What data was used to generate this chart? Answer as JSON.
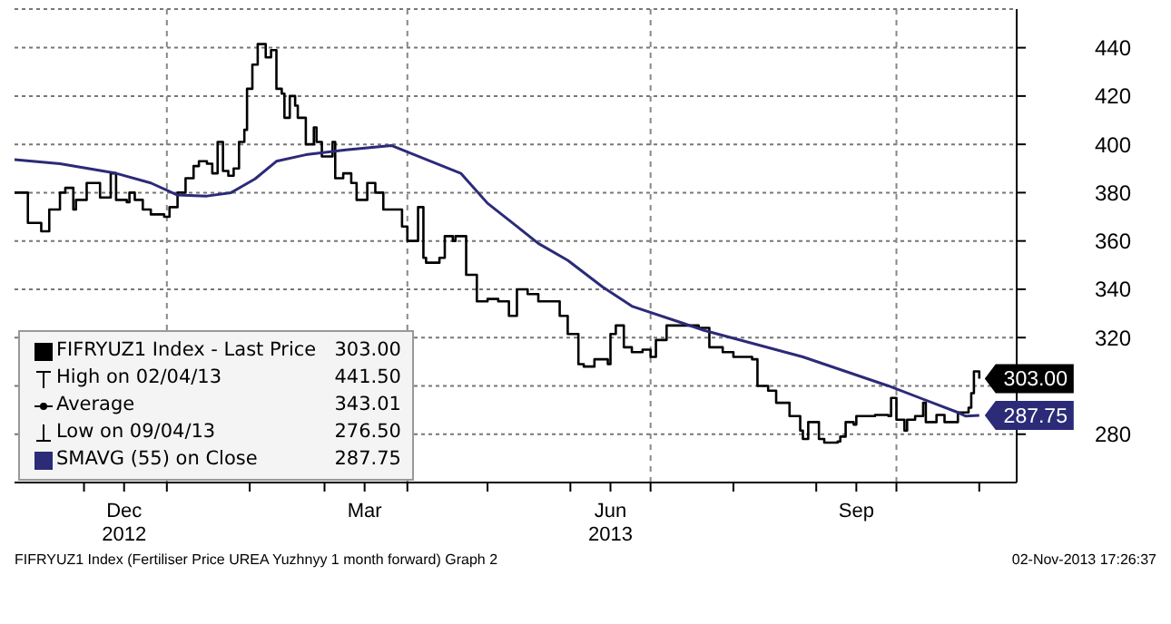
{
  "chart_data": {
    "type": "line",
    "xlim": [
      "2012-11-05",
      "2013-11-15"
    ],
    "xticks": [
      {
        "value": "2012-12-01",
        "label": null
      },
      {
        "value": "2012-12-16",
        "label": "Dec\n2012"
      },
      {
        "value": "2013-01-01",
        "label": null
      },
      {
        "value": "2013-02-01",
        "label": null
      },
      {
        "value": "2013-03-01",
        "label": null
      },
      {
        "value": "2013-03-16",
        "label": "Mar"
      },
      {
        "value": "2013-04-01",
        "label": null
      },
      {
        "value": "2013-05-01",
        "label": null
      },
      {
        "value": "2013-06-01",
        "label": null
      },
      {
        "value": "2013-06-16",
        "label": "Jun\n2013"
      },
      {
        "value": "2013-07-01",
        "label": null
      },
      {
        "value": "2013-08-01",
        "label": null
      },
      {
        "value": "2013-09-01",
        "label": null
      },
      {
        "value": "2013-09-16",
        "label": "Sep"
      },
      {
        "value": "2013-10-01",
        "label": null
      },
      {
        "value": "2013-11-01",
        "label": null
      }
    ],
    "ylim": [
      260,
      456
    ],
    "yticks": [
      280,
      {
        "value": 300,
        "label": null
      },
      320,
      340,
      360,
      380,
      400,
      420,
      440
    ],
    "grid": "y",
    "ref_lines": [
      {
        "axis": "x",
        "value": "2013-01-01",
        "color": "#888888",
        "line_style": "dashed"
      },
      {
        "axis": "x",
        "value": "2013-04-01",
        "color": "#888888",
        "line_style": "dashed"
      },
      {
        "axis": "x",
        "value": "2013-07-01",
        "color": "#888888",
        "line_style": "dashed"
      },
      {
        "axis": "x",
        "value": "2013-10-01",
        "color": "#888888",
        "line_style": "dashed"
      }
    ],
    "legend": "bottom left",
    "annotations": [
      "High on 02/04/13 441.50",
      "Average 343.01",
      "Low on 09/04/13 276.50",
      "FIFRYUZ1 Index (Fertiliser Price UREA Yuzhnyy 1 month forward) Graph 2",
      "02-Nov-2013 17:26:37"
    ],
    "series": [
      {
        "name": "FIFRYUZ1 Index - Last Price",
        "type": "step",
        "color": "#000000",
        "x": [
          "2012-11-05",
          "2012-11-10",
          "2012-11-15",
          "2012-11-18",
          "2012-11-22",
          "2012-11-24",
          "2012-11-27",
          "2012-11-28",
          "2012-12-02",
          "2012-12-07",
          "2012-12-11",
          "2012-12-13",
          "2012-12-17",
          "2012-12-18",
          "2012-12-20",
          "2012-12-23",
          "2012-12-26",
          "2012-12-31",
          "2013-01-02",
          "2013-01-05",
          "2013-01-08",
          "2013-01-11",
          "2013-01-13",
          "2013-01-16",
          "2013-01-18",
          "2013-01-20",
          "2013-01-22",
          "2013-01-24",
          "2013-01-26",
          "2013-01-28",
          "2013-01-30",
          "2013-01-31",
          "2013-02-02",
          "2013-02-04",
          "2013-02-07",
          "2013-02-09",
          "2013-02-11",
          "2013-02-13",
          "2013-02-14",
          "2013-02-16",
          "2013-02-18",
          "2013-02-19",
          "2013-02-22",
          "2013-02-25",
          "2013-02-26",
          "2013-02-28",
          "2013-03-04",
          "2013-03-05",
          "2013-03-08",
          "2013-03-11",
          "2013-03-13",
          "2013-03-17",
          "2013-03-20",
          "2013-03-23",
          "2013-03-30",
          "2013-04-01",
          "2013-04-05",
          "2013-04-07",
          "2013-04-08",
          "2013-04-13",
          "2013-04-15",
          "2013-04-18",
          "2013-04-19",
          "2013-04-23",
          "2013-04-27",
          "2013-05-01",
          "2013-05-05",
          "2013-05-09",
          "2013-05-12",
          "2013-05-16",
          "2013-05-20",
          "2013-05-28",
          "2013-05-31",
          "2013-06-04",
          "2013-06-06",
          "2013-06-10",
          "2013-06-15",
          "2013-06-16",
          "2013-06-18",
          "2013-06-21",
          "2013-06-24",
          "2013-06-28",
          "2013-07-01",
          "2013-07-03",
          "2013-07-07",
          "2013-07-19",
          "2013-07-23",
          "2013-07-26",
          "2013-07-28",
          "2013-08-01",
          "2013-08-08",
          "2013-08-10",
          "2013-08-14",
          "2013-08-17",
          "2013-08-22",
          "2013-08-26",
          "2013-08-27",
          "2013-08-29",
          "2013-09-02",
          "2013-09-04",
          "2013-09-09",
          "2013-09-10",
          "2013-09-12",
          "2013-09-15",
          "2013-09-16",
          "2013-09-23",
          "2013-09-28",
          "2013-09-29",
          "2013-10-01",
          "2013-10-04",
          "2013-10-05",
          "2013-10-08",
          "2013-10-11",
          "2013-10-12",
          "2013-10-16",
          "2013-10-19",
          "2013-10-24",
          "2013-10-28",
          "2013-10-29",
          "2013-10-30",
          "2013-11-01"
        ],
        "values": [
          380,
          367.5,
          364,
          373,
          380,
          382,
          373,
          377,
          384,
          378,
          388,
          377,
          376,
          380,
          377,
          373,
          371,
          370,
          374,
          380,
          386,
          391,
          393,
          392,
          388,
          401,
          389,
          387,
          390,
          401,
          406,
          423,
          433,
          441.5,
          436,
          439,
          423,
          421,
          411,
          420,
          416,
          411,
          400,
          407,
          401,
          395,
          401,
          386,
          388,
          384,
          377,
          384,
          380,
          373,
          366,
          360,
          374,
          353,
          351,
          353,
          362,
          360,
          362,
          346,
          335,
          336,
          335,
          329,
          340,
          338,
          335,
          329,
          321.5,
          309,
          308,
          311,
          309,
          321.5,
          325,
          316,
          314,
          315,
          312,
          319,
          325,
          324,
          316,
          316,
          314,
          312,
          311,
          300,
          298,
          293,
          287.5,
          281.5,
          278,
          285,
          278,
          276.5,
          277,
          279,
          285,
          284,
          287.5,
          288,
          287.5,
          295,
          286,
          281.5,
          286,
          287.5,
          293,
          285,
          288,
          285,
          289,
          291,
          297,
          306,
          303
        ],
        "value_labels": [
          null,
          null,
          null,
          null,
          null,
          null,
          null,
          null,
          null,
          null,
          null,
          null,
          null,
          null,
          null,
          null,
          null,
          null,
          null,
          null,
          null,
          null,
          null,
          null,
          null,
          null,
          null,
          null,
          null,
          null,
          null,
          null,
          null,
          null,
          null,
          null,
          null,
          null,
          null,
          null,
          null,
          null,
          null,
          null,
          null,
          null,
          null,
          null,
          null,
          null,
          null,
          null,
          null,
          null,
          null,
          null,
          null,
          null,
          null,
          null,
          null,
          null,
          null,
          null,
          null,
          null,
          null,
          null,
          null,
          null,
          null,
          null,
          null,
          null,
          null,
          null,
          null,
          null,
          null,
          null,
          null,
          null,
          null,
          null,
          null,
          null,
          null,
          null,
          null,
          null,
          null,
          null,
          null,
          null,
          null,
          null,
          null,
          null,
          null,
          null,
          null,
          null,
          null,
          null,
          null,
          null,
          null,
          null,
          null,
          null,
          null,
          null,
          null,
          null,
          null,
          null,
          null,
          null,
          null,
          null,
          "303.00"
        ]
      },
      {
        "name": "SMAVG (55) on Close",
        "type": "line",
        "color": "#2b2b78",
        "x": [
          "2012-11-05",
          "2012-11-22",
          "2012-12-13",
          "2012-12-26",
          "2013-01-05",
          "2013-01-16",
          "2013-01-25",
          "2013-02-03",
          "2013-02-11",
          "2013-02-22",
          "2013-03-09",
          "2013-03-26",
          "2013-04-03",
          "2013-04-21",
          "2013-05-01",
          "2013-05-12",
          "2013-05-20",
          "2013-05-31",
          "2013-06-13",
          "2013-06-24",
          "2013-07-13",
          "2013-07-21",
          "2013-08-27",
          "2013-09-28",
          "2013-10-24",
          "2013-10-27",
          "2013-11-01"
        ],
        "values": [
          393.7,
          392,
          388,
          384,
          379,
          378.6,
          380,
          385.7,
          393,
          395.7,
          397.7,
          399.5,
          396,
          388,
          375.6,
          366,
          359,
          352,
          341,
          333,
          326,
          323,
          312,
          300,
          289,
          287.5,
          287.75
        ],
        "value_labels": [
          null,
          null,
          null,
          null,
          null,
          null,
          null,
          null,
          null,
          null,
          null,
          null,
          null,
          null,
          null,
          null,
          null,
          null,
          null,
          null,
          null,
          null,
          null,
          null,
          null,
          null,
          "287.75"
        ]
      }
    ]
  }
}
